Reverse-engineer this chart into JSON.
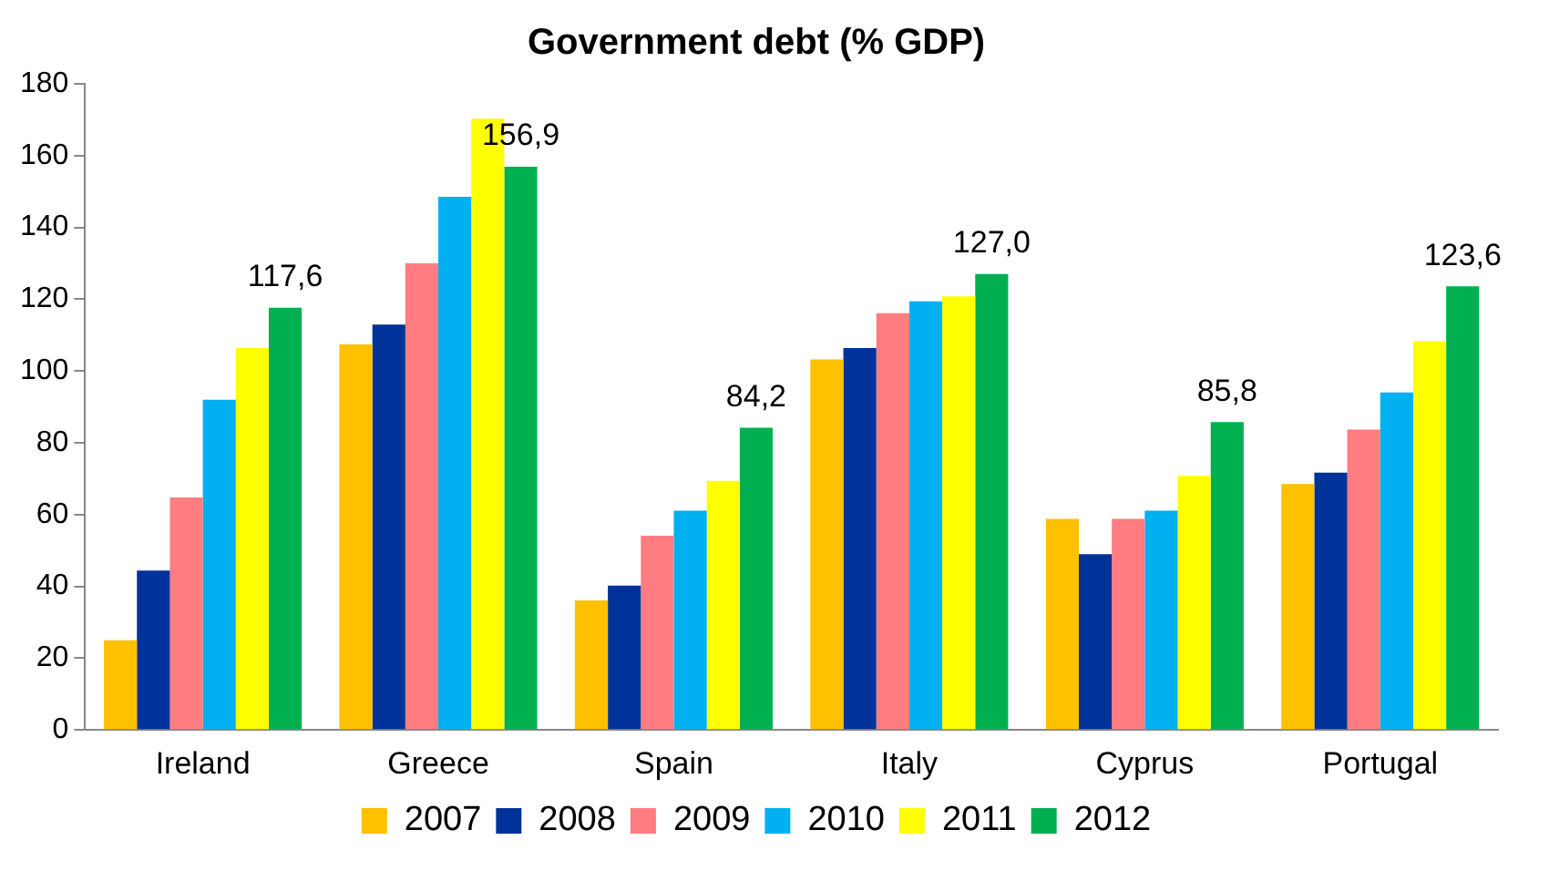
{
  "chart_data": {
    "type": "bar",
    "title": "Government debt (% GDP)",
    "categories": [
      "Ireland",
      "Greece",
      "Spain",
      "Italy",
      "Cyprus",
      "Portugal"
    ],
    "series": [
      {
        "name": "2007",
        "color": "#ffc000",
        "values": [
          25,
          107.4,
          36.1,
          103.2,
          58.8,
          68.5
        ]
      },
      {
        "name": "2008",
        "color": "#003399",
        "values": [
          44.4,
          112.9,
          40.2,
          106.4,
          49,
          71.7
        ]
      },
      {
        "name": "2009",
        "color": "#ff7c80",
        "values": [
          64.8,
          130,
          54.1,
          116.1,
          58.8,
          83.7
        ]
      },
      {
        "name": "2010",
        "color": "#00b0f0",
        "values": [
          92,
          148.5,
          61.1,
          119.4,
          61.1,
          94
        ]
      },
      {
        "name": "2011",
        "color": "#ffff00",
        "values": [
          106.4,
          170.3,
          69.4,
          120.8,
          70.8,
          108.3
        ]
      },
      {
        "name": "2012",
        "color": "#00b050",
        "values": [
          117.6,
          156.9,
          84.2,
          127,
          85.8,
          123.6
        ],
        "value_labels": [
          "117,6",
          "156,9",
          "84,2",
          "127,0",
          "85,8",
          "123,6"
        ]
      }
    ],
    "ylim": [
      0,
      180
    ],
    "yticks": [
      0,
      20,
      40,
      60,
      80,
      100,
      120,
      140,
      160,
      180
    ],
    "grid": false,
    "legend": "bottom"
  }
}
